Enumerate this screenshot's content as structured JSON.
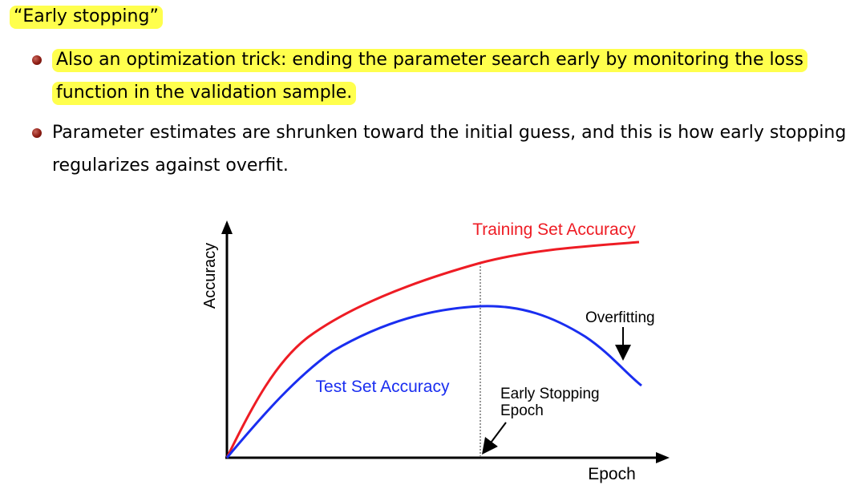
{
  "slide": {
    "heading": "“Early stopping”",
    "bullets": [
      "Also an optimization trick: ending the parameter search early by monitoring the loss function in the validation sample.",
      "Parameter estimates are shrunken toward the initial guess, and this is how early stopping regularizes against overfit."
    ],
    "highlight_color": "#ffff4d",
    "bullet_color": "#8e1d14"
  },
  "chart_data": {
    "type": "line",
    "xlabel": "Epoch",
    "ylabel": "Accuracy",
    "series": [
      {
        "name": "Training Set Accuracy",
        "color": "#ee1c24"
      },
      {
        "name": "Test Set Accuracy",
        "color": "#1a2ef0"
      }
    ],
    "annotations": {
      "early_stopping": [
        "Early Stopping",
        "Epoch"
      ],
      "overfitting": "Overfitting"
    }
  }
}
